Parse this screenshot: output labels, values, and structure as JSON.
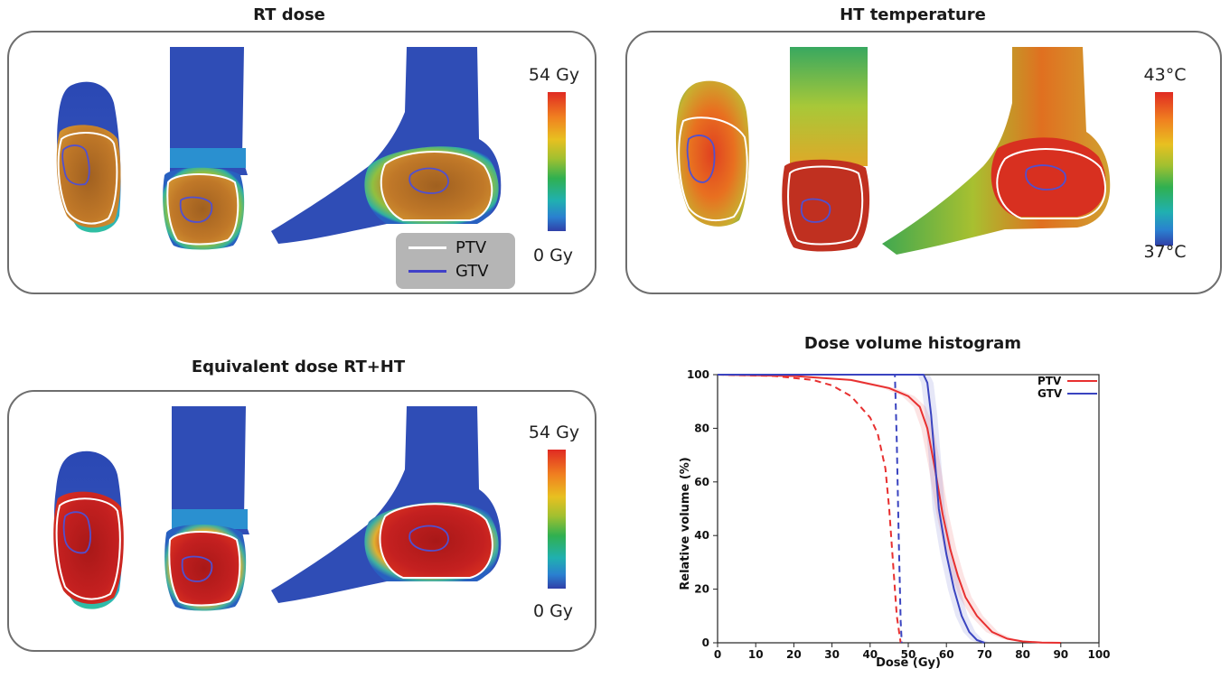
{
  "colors": {
    "ptv_contour": "#ffffff",
    "gtv_contour": "#4040c8",
    "ptv_curve": "#e83030",
    "gtv_curve": "#3a44c0",
    "frame": "#6e6e6e",
    "legend_bg": "#b5b5b5"
  },
  "panels": {
    "rt_dose": {
      "title": "RT dose",
      "colorbar": {
        "max_label": "54 Gy",
        "min_label": "0 Gy"
      },
      "legend": [
        {
          "label": "PTV"
        },
        {
          "label": "GTV"
        }
      ]
    },
    "ht_temperature": {
      "title": "HT temperature",
      "colorbar": {
        "max_label": "43°C",
        "min_label": "37°C"
      }
    },
    "equivalent_dose": {
      "title": "Equivalent dose RT+HT",
      "colorbar": {
        "max_label": "54 Gy",
        "min_label": "0 Gy"
      }
    }
  },
  "chart_data": {
    "type": "line",
    "title": "Dose volume histogram",
    "xlabel": "Dose (Gy)",
    "ylabel": "Relative volume (%)",
    "xlim": [
      0,
      100
    ],
    "ylim": [
      0,
      100
    ],
    "xticks": [
      0,
      10,
      20,
      30,
      40,
      50,
      60,
      70,
      80,
      90,
      100
    ],
    "yticks": [
      0,
      20,
      40,
      60,
      80,
      100
    ],
    "legend": {
      "placement": "top-right",
      "entries": [
        "PTV",
        "GTV"
      ]
    },
    "series": [
      {
        "name": "PTV",
        "style": "solid",
        "x": [
          0,
          20,
          35,
          45,
          50,
          53,
          55,
          57,
          59,
          61,
          63,
          65,
          68,
          72,
          76,
          80,
          85,
          90
        ],
        "y": [
          100,
          99.5,
          98,
          95,
          92,
          88,
          80,
          65,
          48,
          35,
          25,
          17,
          10,
          4,
          1.5,
          0.5,
          0.1,
          0
        ]
      },
      {
        "name": "GTV",
        "style": "solid",
        "x": [
          0,
          54,
          55,
          56,
          57,
          58,
          60,
          62,
          64,
          66,
          68,
          70
        ],
        "y": [
          100,
          100,
          97,
          85,
          68,
          50,
          33,
          20,
          10,
          4,
          1,
          0
        ]
      },
      {
        "name": "PTV",
        "style": "dashed",
        "x": [
          0,
          15,
          25,
          30,
          35,
          40,
          42,
          44,
          45,
          46,
          47,
          48
        ],
        "y": [
          100,
          99.5,
          98,
          96,
          92,
          84,
          78,
          65,
          50,
          30,
          10,
          0
        ]
      },
      {
        "name": "GTV",
        "style": "dashed",
        "x": [
          0,
          46.5,
          47,
          47.5,
          48,
          48.3
        ],
        "y": [
          100,
          100,
          75,
          40,
          8,
          0
        ]
      }
    ]
  }
}
